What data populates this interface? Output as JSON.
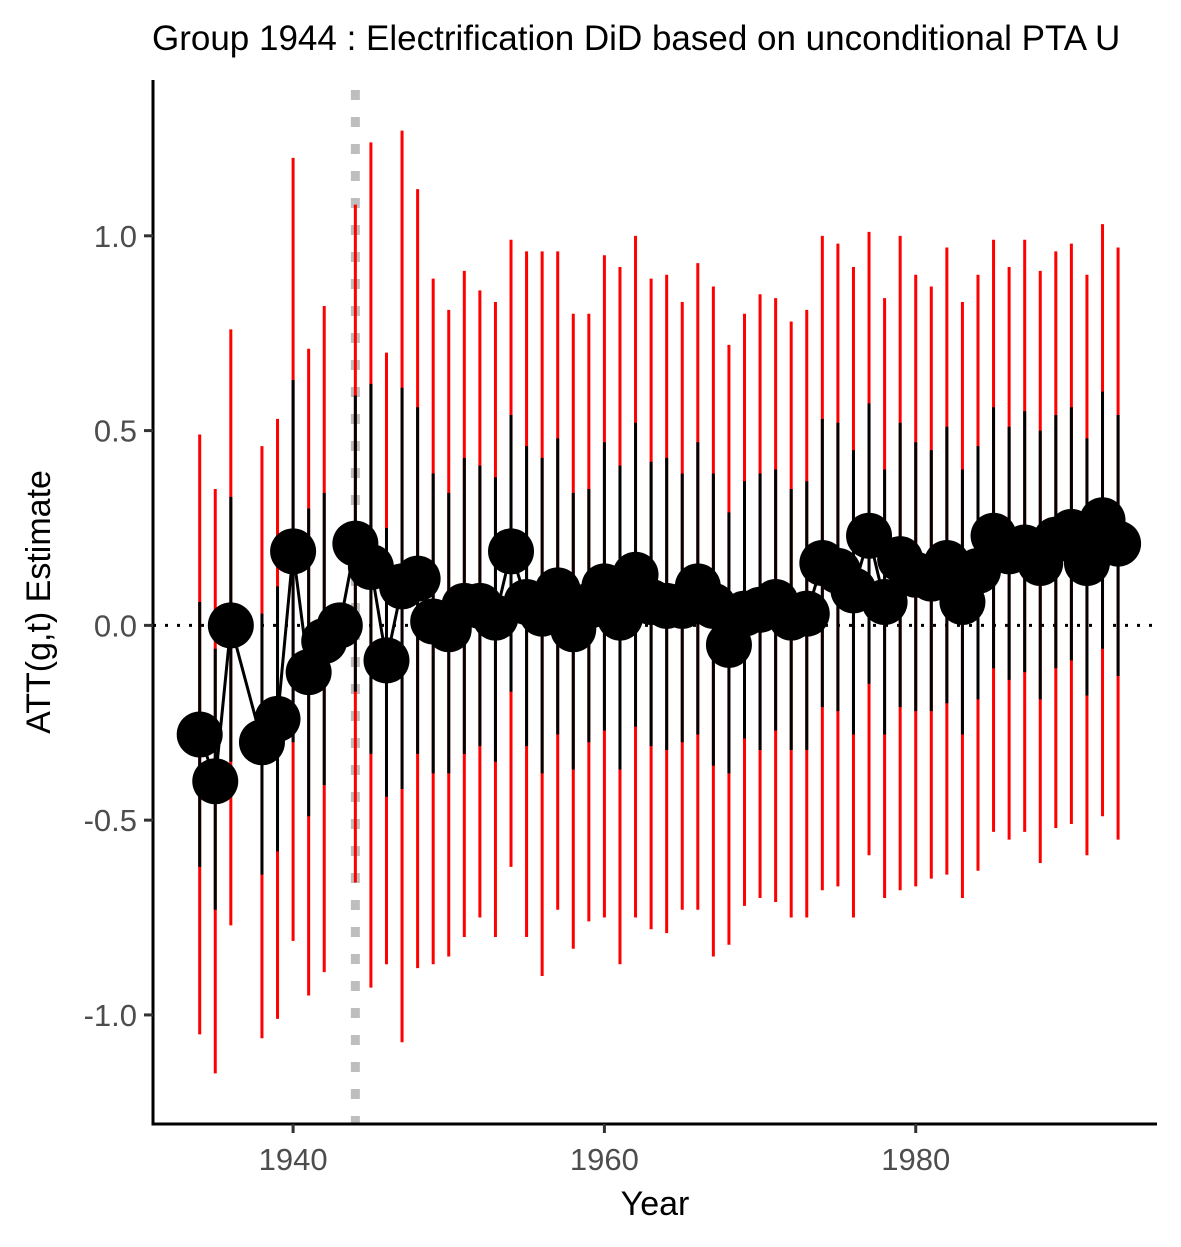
{
  "chart_data": {
    "type": "scatter",
    "title": "Group 1944 : Electrification DiD based on unconditional PTA U",
    "xlabel": "Year",
    "ylabel": "ATT(g,t) Estimate",
    "xlim": [
      1931,
      1995.5
    ],
    "ylim": [
      -1.28,
      1.4
    ],
    "xticks": [
      1940,
      1960,
      1980
    ],
    "xtick_labels": [
      "1940",
      "1960",
      "1980"
    ],
    "yticks": [
      -1.0,
      -0.5,
      0.0,
      0.5,
      1.0
    ],
    "ytick_labels": [
      "-1.0",
      "-0.5",
      "0.0",
      "0.5",
      "1.0"
    ],
    "grid": false,
    "legend": "none",
    "reference_lines": {
      "treatment_year": 1944,
      "zero": 0.0
    },
    "colors": {
      "point": "#000000",
      "uniform_band": "#ff0000",
      "pointwise_band": "#000000",
      "treatment_line": "#bebebe"
    },
    "series": [
      {
        "x": [
          1934,
          1935,
          1936,
          1938,
          1939,
          1940,
          1941,
          1942,
          1943,
          1944,
          1945,
          1946,
          1947,
          1948,
          1949,
          1950,
          1951,
          1952,
          1953,
          1954,
          1955,
          1956,
          1957,
          1958,
          1959,
          1960,
          1961,
          1962,
          1963,
          1964,
          1965,
          1966,
          1967,
          1968,
          1969,
          1970,
          1971,
          1972,
          1973,
          1974,
          1975,
          1976,
          1977,
          1978,
          1979,
          1980,
          1981,
          1982,
          1983,
          1984,
          1985,
          1986,
          1987,
          1988,
          1989,
          1990,
          1991,
          1992,
          1993
        ],
        "y": [
          -0.28,
          -0.4,
          0.0,
          -0.3,
          -0.24,
          0.19,
          -0.12,
          -0.04,
          0.0,
          0.21,
          0.15,
          -0.09,
          0.1,
          0.12,
          0.01,
          -0.01,
          0.05,
          0.05,
          0.02,
          0.19,
          0.06,
          0.03,
          0.09,
          -0.01,
          0.05,
          0.1,
          0.02,
          0.13,
          0.06,
          0.05,
          0.05,
          0.1,
          0.05,
          -0.05,
          0.03,
          0.04,
          0.06,
          0.02,
          0.03,
          0.16,
          0.14,
          0.09,
          0.23,
          0.06,
          0.17,
          0.13,
          0.12,
          0.16,
          0.06,
          0.14,
          0.23,
          0.19,
          0.2,
          0.16,
          0.22,
          0.24,
          0.16,
          0.27,
          0.21
        ],
        "uniform_low": [
          -1.05,
          -1.15,
          -0.77,
          -1.06,
          -1.01,
          -0.81,
          -0.95,
          -0.89,
          null,
          -0.66,
          -0.93,
          -0.87,
          -1.07,
          -0.88,
          -0.87,
          -0.85,
          -0.8,
          -0.75,
          -0.8,
          -0.62,
          -0.8,
          -0.9,
          -0.73,
          -0.83,
          -0.76,
          -0.75,
          -0.87,
          -0.75,
          -0.78,
          -0.79,
          -0.73,
          -0.73,
          -0.85,
          -0.82,
          -0.72,
          -0.7,
          -0.71,
          -0.75,
          -0.75,
          -0.68,
          -0.67,
          -0.75,
          -0.59,
          -0.7,
          -0.68,
          -0.67,
          -0.65,
          -0.64,
          -0.7,
          -0.63,
          -0.53,
          -0.55,
          -0.53,
          -0.61,
          -0.52,
          -0.51,
          -0.59,
          -0.49,
          -0.55
        ],
        "uniform_high": [
          0.49,
          0.35,
          0.76,
          0.46,
          0.53,
          1.2,
          0.71,
          0.82,
          null,
          1.08,
          1.24,
          0.7,
          1.27,
          1.12,
          0.89,
          0.81,
          0.91,
          0.86,
          0.83,
          0.99,
          0.96,
          0.96,
          0.96,
          0.8,
          0.8,
          0.95,
          0.92,
          1.0,
          0.89,
          0.9,
          0.83,
          0.93,
          0.87,
          0.72,
          0.8,
          0.85,
          0.84,
          0.78,
          0.81,
          1.0,
          0.98,
          0.92,
          1.01,
          0.84,
          1.0,
          0.9,
          0.87,
          0.97,
          0.83,
          0.9,
          0.99,
          0.92,
          0.99,
          0.91,
          0.96,
          0.98,
          0.9,
          1.03,
          0.97
        ],
        "pointwise_low": [
          -0.62,
          -0.73,
          -0.35,
          -0.64,
          -0.58,
          -0.3,
          -0.49,
          -0.41,
          null,
          -0.17,
          -0.33,
          -0.44,
          -0.42,
          -0.33,
          -0.38,
          -0.38,
          -0.33,
          -0.31,
          -0.35,
          -0.17,
          -0.31,
          -0.38,
          -0.28,
          -0.37,
          -0.3,
          -0.27,
          -0.37,
          -0.26,
          -0.31,
          -0.32,
          -0.3,
          -0.28,
          -0.36,
          -0.38,
          -0.29,
          -0.32,
          -0.27,
          -0.32,
          -0.32,
          -0.21,
          -0.22,
          -0.28,
          -0.15,
          -0.28,
          -0.21,
          -0.22,
          -0.22,
          -0.2,
          -0.28,
          -0.19,
          -0.11,
          -0.14,
          -0.12,
          -0.19,
          -0.11,
          -0.09,
          -0.18,
          -0.06,
          -0.13
        ],
        "pointwise_high": [
          0.06,
          -0.06,
          0.33,
          0.03,
          0.1,
          0.63,
          0.3,
          0.34,
          null,
          0.59,
          0.62,
          0.25,
          0.61,
          0.56,
          0.39,
          0.34,
          0.43,
          0.41,
          0.38,
          0.54,
          0.46,
          0.43,
          0.48,
          0.34,
          0.35,
          0.47,
          0.41,
          0.52,
          0.42,
          0.43,
          0.39,
          0.47,
          0.39,
          0.29,
          0.37,
          0.39,
          0.4,
          0.35,
          0.37,
          0.53,
          0.52,
          0.45,
          0.57,
          0.4,
          0.52,
          0.47,
          0.45,
          0.51,
          0.4,
          0.46,
          0.56,
          0.51,
          0.55,
          0.5,
          0.54,
          0.56,
          0.48,
          0.6,
          0.54
        ]
      }
    ]
  }
}
